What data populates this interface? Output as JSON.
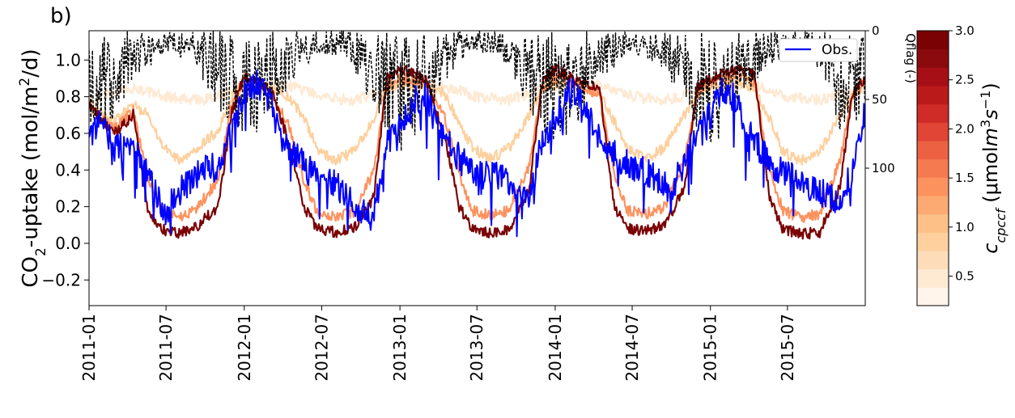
{
  "panel_label": "b)",
  "chart_data": {
    "type": "line",
    "x_axis": {
      "type": "date",
      "range": [
        "2011-01-01",
        "2015-12-31"
      ],
      "ticks": [
        "2011-01",
        "2011-07",
        "2012-01",
        "2012-07",
        "2013-01",
        "2013-07",
        "2014-01",
        "2014-07",
        "2015-01",
        "2015-07"
      ]
    },
    "y_axis": {
      "label_parts": [
        "CO",
        "2",
        "-uptake (mol/m",
        "2",
        "/d)"
      ],
      "ylim": [
        -0.34,
        1.16
      ],
      "ticks": [
        -0.2,
        0.0,
        0.2,
        0.4,
        0.6,
        0.8,
        1.0
      ],
      "tick_labels": [
        "−0.2",
        "0.0",
        "0.2",
        "0.4",
        "0.6",
        "0.8",
        "1.0"
      ]
    },
    "secondary_y_axis": {
      "label": "Qflag (-)",
      "inverted": true,
      "range": [
        0,
        200
      ],
      "ticks": [
        0,
        50,
        100
      ]
    },
    "legend": {
      "entries": [
        "Obs."
      ],
      "position": "top-right",
      "color": "#0000ff"
    },
    "colorbar": {
      "label_parts": [
        "c",
        "cpccf",
        " (μmol",
        "m",
        "3",
        "s",
        "−1",
        ")"
      ],
      "range": [
        0.2,
        3.0
      ],
      "ticks": [
        0.5,
        1.0,
        1.5,
        2.0,
        2.5,
        3.0
      ],
      "colors": [
        "#fff5eb",
        "#fee9d3",
        "#fdddb9",
        "#fdd09e",
        "#fdc086",
        "#fcaa71",
        "#fc935f",
        "#f67a50",
        "#ec6142",
        "#e04535",
        "#cf2b27",
        "#bb1a1b",
        "#a50f15",
        "#8a0a0e",
        "#7a0204"
      ]
    },
    "series": [
      {
        "name": "Obs.",
        "kind": "observed",
        "color": "#0000ff",
        "x": [
          "2011-01-01",
          "2011-02-01",
          "2011-03-01",
          "2011-04-01",
          "2011-05-01",
          "2011-06-01",
          "2011-07-01",
          "2011-08-01",
          "2011-09-01",
          "2011-10-01",
          "2011-11-01",
          "2011-12-01",
          "2012-01-01",
          "2012-02-01",
          "2012-03-01",
          "2012-04-01",
          "2012-05-01",
          "2012-06-01",
          "2012-07-01",
          "2012-08-01",
          "2012-09-01",
          "2012-10-01",
          "2012-11-01",
          "2012-12-01",
          "2013-01-01",
          "2013-02-01",
          "2013-03-01",
          "2013-04-01",
          "2013-05-01",
          "2013-06-01",
          "2013-07-01",
          "2013-08-01",
          "2013-09-01",
          "2013-10-01",
          "2013-11-01",
          "2013-12-01",
          "2014-01-01",
          "2014-02-01",
          "2014-03-01",
          "2014-04-01",
          "2014-05-01",
          "2014-06-01",
          "2014-07-01",
          "2014-08-01",
          "2014-09-01",
          "2014-10-01",
          "2014-11-01",
          "2014-12-01",
          "2015-01-01",
          "2015-02-01",
          "2015-03-01",
          "2015-04-01",
          "2015-05-01",
          "2015-06-01",
          "2015-07-01",
          "2015-08-01",
          "2015-09-01",
          "2015-10-01",
          "2015-11-01",
          "2015-12-01",
          "2015-12-31"
        ],
        "y": [
          0.55,
          0.7,
          0.5,
          0.58,
          0.45,
          0.3,
          0.17,
          0.28,
          0.36,
          0.41,
          0.43,
          0.6,
          0.82,
          0.88,
          0.78,
          0.55,
          0.48,
          0.4,
          0.38,
          0.33,
          0.25,
          0.16,
          0.15,
          0.55,
          0.65,
          0.78,
          0.8,
          0.62,
          0.52,
          0.44,
          0.38,
          0.36,
          0.38,
          0.28,
          0.27,
          0.55,
          0.68,
          0.85,
          0.82,
          0.62,
          0.52,
          0.46,
          0.42,
          0.39,
          0.35,
          0.28,
          0.45,
          0.62,
          0.7,
          0.85,
          0.78,
          0.6,
          0.5,
          0.42,
          0.38,
          0.35,
          0.3,
          0.26,
          0.22,
          0.4,
          0.72
        ]
      },
      {
        "name": "c_cpccf = 3.0",
        "kind": "model",
        "color": "#7a0204",
        "x": [
          "2011-01-01",
          "2011-03-01",
          "2011-04-15",
          "2011-05-20",
          "2011-06-20",
          "2011-08-01",
          "2011-09-15",
          "2011-11-01",
          "2011-12-01",
          "2012-01-01",
          "2012-03-01",
          "2012-04-15",
          "2012-05-20",
          "2012-06-20",
          "2012-08-01",
          "2012-09-15",
          "2012-11-01",
          "2012-12-01",
          "2013-01-01",
          "2013-03-01",
          "2013-04-15",
          "2013-05-20",
          "2013-06-20",
          "2013-08-01",
          "2013-09-15",
          "2013-11-01",
          "2013-12-01",
          "2014-01-01",
          "2014-03-01",
          "2014-04-15",
          "2014-05-20",
          "2014-06-20",
          "2014-08-01",
          "2014-09-15",
          "2014-11-01",
          "2014-12-01",
          "2015-01-01",
          "2015-03-01",
          "2015-04-15",
          "2015-05-20",
          "2015-06-20",
          "2015-08-01",
          "2015-09-15",
          "2015-11-01",
          "2015-12-01",
          "2015-12-31"
        ],
        "y": [
          0.75,
          0.6,
          0.7,
          0.18,
          0.08,
          0.05,
          0.1,
          0.2,
          0.7,
          0.92,
          0.85,
          0.55,
          0.2,
          0.08,
          0.06,
          0.08,
          0.25,
          0.9,
          0.95,
          0.9,
          0.6,
          0.2,
          0.08,
          0.06,
          0.08,
          0.3,
          0.88,
          0.95,
          0.88,
          0.85,
          0.2,
          0.08,
          0.07,
          0.1,
          0.3,
          0.85,
          0.9,
          0.95,
          0.92,
          0.25,
          0.08,
          0.05,
          0.06,
          0.3,
          0.82,
          0.9
        ]
      },
      {
        "name": "c_cpccf = 1.5",
        "kind": "model",
        "color": "#fc935f",
        "x": [
          "2011-01-01",
          "2011-03-01",
          "2011-04-15",
          "2011-05-20",
          "2011-06-20",
          "2011-08-01",
          "2011-09-15",
          "2011-11-01",
          "2011-12-01",
          "2012-01-01",
          "2012-03-01",
          "2012-04-15",
          "2012-05-20",
          "2012-06-20",
          "2012-08-01",
          "2012-09-15",
          "2012-11-01",
          "2012-12-01",
          "2013-01-01",
          "2013-03-01",
          "2013-04-15",
          "2013-05-20",
          "2013-06-20",
          "2013-08-01",
          "2013-09-15",
          "2013-11-01",
          "2013-12-01",
          "2014-01-01",
          "2014-03-01",
          "2014-04-15",
          "2014-05-20",
          "2014-06-20",
          "2014-08-01",
          "2014-09-15",
          "2014-11-01",
          "2014-12-01",
          "2015-01-01",
          "2015-03-01",
          "2015-04-15",
          "2015-05-20",
          "2015-06-20",
          "2015-08-01",
          "2015-09-15",
          "2015-11-01",
          "2015-12-01",
          "2015-12-31"
        ],
        "y": [
          0.75,
          0.62,
          0.72,
          0.35,
          0.18,
          0.14,
          0.2,
          0.35,
          0.75,
          0.9,
          0.83,
          0.65,
          0.35,
          0.17,
          0.14,
          0.17,
          0.4,
          0.85,
          0.9,
          0.88,
          0.7,
          0.38,
          0.18,
          0.15,
          0.18,
          0.42,
          0.85,
          0.9,
          0.87,
          0.8,
          0.38,
          0.18,
          0.16,
          0.2,
          0.45,
          0.82,
          0.88,
          0.92,
          0.88,
          0.4,
          0.18,
          0.14,
          0.16,
          0.45,
          0.8,
          0.88
        ]
      },
      {
        "name": "c_cpccf = 0.5",
        "kind": "model",
        "color": "#fdd09e",
        "x": [
          "2011-01-01",
          "2011-03-01",
          "2011-04-15",
          "2011-05-20",
          "2011-06-20",
          "2011-08-01",
          "2011-09-15",
          "2011-11-01",
          "2011-12-01",
          "2012-01-01",
          "2012-03-01",
          "2012-04-15",
          "2012-05-20",
          "2012-06-20",
          "2012-08-01",
          "2012-09-15",
          "2012-11-01",
          "2012-12-01",
          "2013-01-01",
          "2013-03-01",
          "2013-04-15",
          "2013-05-20",
          "2013-06-20",
          "2013-08-01",
          "2013-09-15",
          "2013-11-01",
          "2013-12-01",
          "2014-01-01",
          "2014-03-01",
          "2014-04-15",
          "2014-05-20",
          "2014-06-20",
          "2014-08-01",
          "2014-09-15",
          "2014-11-01",
          "2014-12-01",
          "2015-01-01",
          "2015-03-01",
          "2015-04-15",
          "2015-05-20",
          "2015-06-20",
          "2015-08-01",
          "2015-09-15",
          "2015-11-01",
          "2015-12-01",
          "2015-12-31"
        ],
        "y": [
          0.76,
          0.66,
          0.76,
          0.7,
          0.55,
          0.45,
          0.52,
          0.62,
          0.8,
          0.88,
          0.84,
          0.8,
          0.68,
          0.52,
          0.45,
          0.5,
          0.68,
          0.85,
          0.88,
          0.86,
          0.82,
          0.66,
          0.52,
          0.46,
          0.52,
          0.7,
          0.85,
          0.88,
          0.86,
          0.83,
          0.66,
          0.52,
          0.46,
          0.52,
          0.7,
          0.82,
          0.86,
          0.88,
          0.85,
          0.68,
          0.5,
          0.45,
          0.5,
          0.7,
          0.8,
          0.86
        ]
      },
      {
        "name": "c_cpccf = 0.2",
        "kind": "model",
        "color": "#fee9d3",
        "x": [
          "2011-01-01",
          "2011-04-15",
          "2011-07-01",
          "2011-09-15",
          "2011-12-01",
          "2012-01-01",
          "2012-04-15",
          "2012-07-01",
          "2012-09-15",
          "2012-12-01",
          "2013-01-01",
          "2013-04-15",
          "2013-07-01",
          "2013-09-15",
          "2013-12-01",
          "2014-01-01",
          "2014-04-15",
          "2014-07-01",
          "2014-09-15",
          "2014-12-01",
          "2015-01-01",
          "2015-04-15",
          "2015-07-01",
          "2015-09-15",
          "2015-12-01",
          "2015-12-31"
        ],
        "y": [
          0.78,
          0.85,
          0.8,
          0.78,
          0.82,
          0.86,
          0.86,
          0.8,
          0.78,
          0.84,
          0.86,
          0.86,
          0.8,
          0.78,
          0.84,
          0.86,
          0.86,
          0.8,
          0.78,
          0.82,
          0.85,
          0.86,
          0.8,
          0.78,
          0.82,
          0.85
        ]
      }
    ],
    "qflag": {
      "name": "Qflag",
      "color": "#000000",
      "x": [
        "2011-01-01",
        "2011-03-01",
        "2011-05-01",
        "2011-07-01",
        "2011-09-01",
        "2011-11-01",
        "2012-01-01",
        "2012-03-01",
        "2012-05-01",
        "2012-07-01",
        "2012-09-01",
        "2012-11-01",
        "2013-01-01",
        "2013-03-01",
        "2013-05-01",
        "2013-07-01",
        "2013-09-01",
        "2013-11-01",
        "2014-01-01",
        "2014-03-01",
        "2014-05-01",
        "2014-07-01",
        "2014-09-01",
        "2014-11-01",
        "2015-01-01",
        "2015-03-01",
        "2015-05-01",
        "2015-07-01",
        "2015-09-01",
        "2015-11-01",
        "2015-12-31"
      ],
      "y": [
        60,
        40,
        20,
        10,
        15,
        35,
        55,
        40,
        20,
        10,
        15,
        35,
        60,
        45,
        20,
        10,
        15,
        35,
        60,
        40,
        20,
        10,
        15,
        35,
        55,
        40,
        20,
        10,
        15,
        45,
        40
      ]
    }
  }
}
